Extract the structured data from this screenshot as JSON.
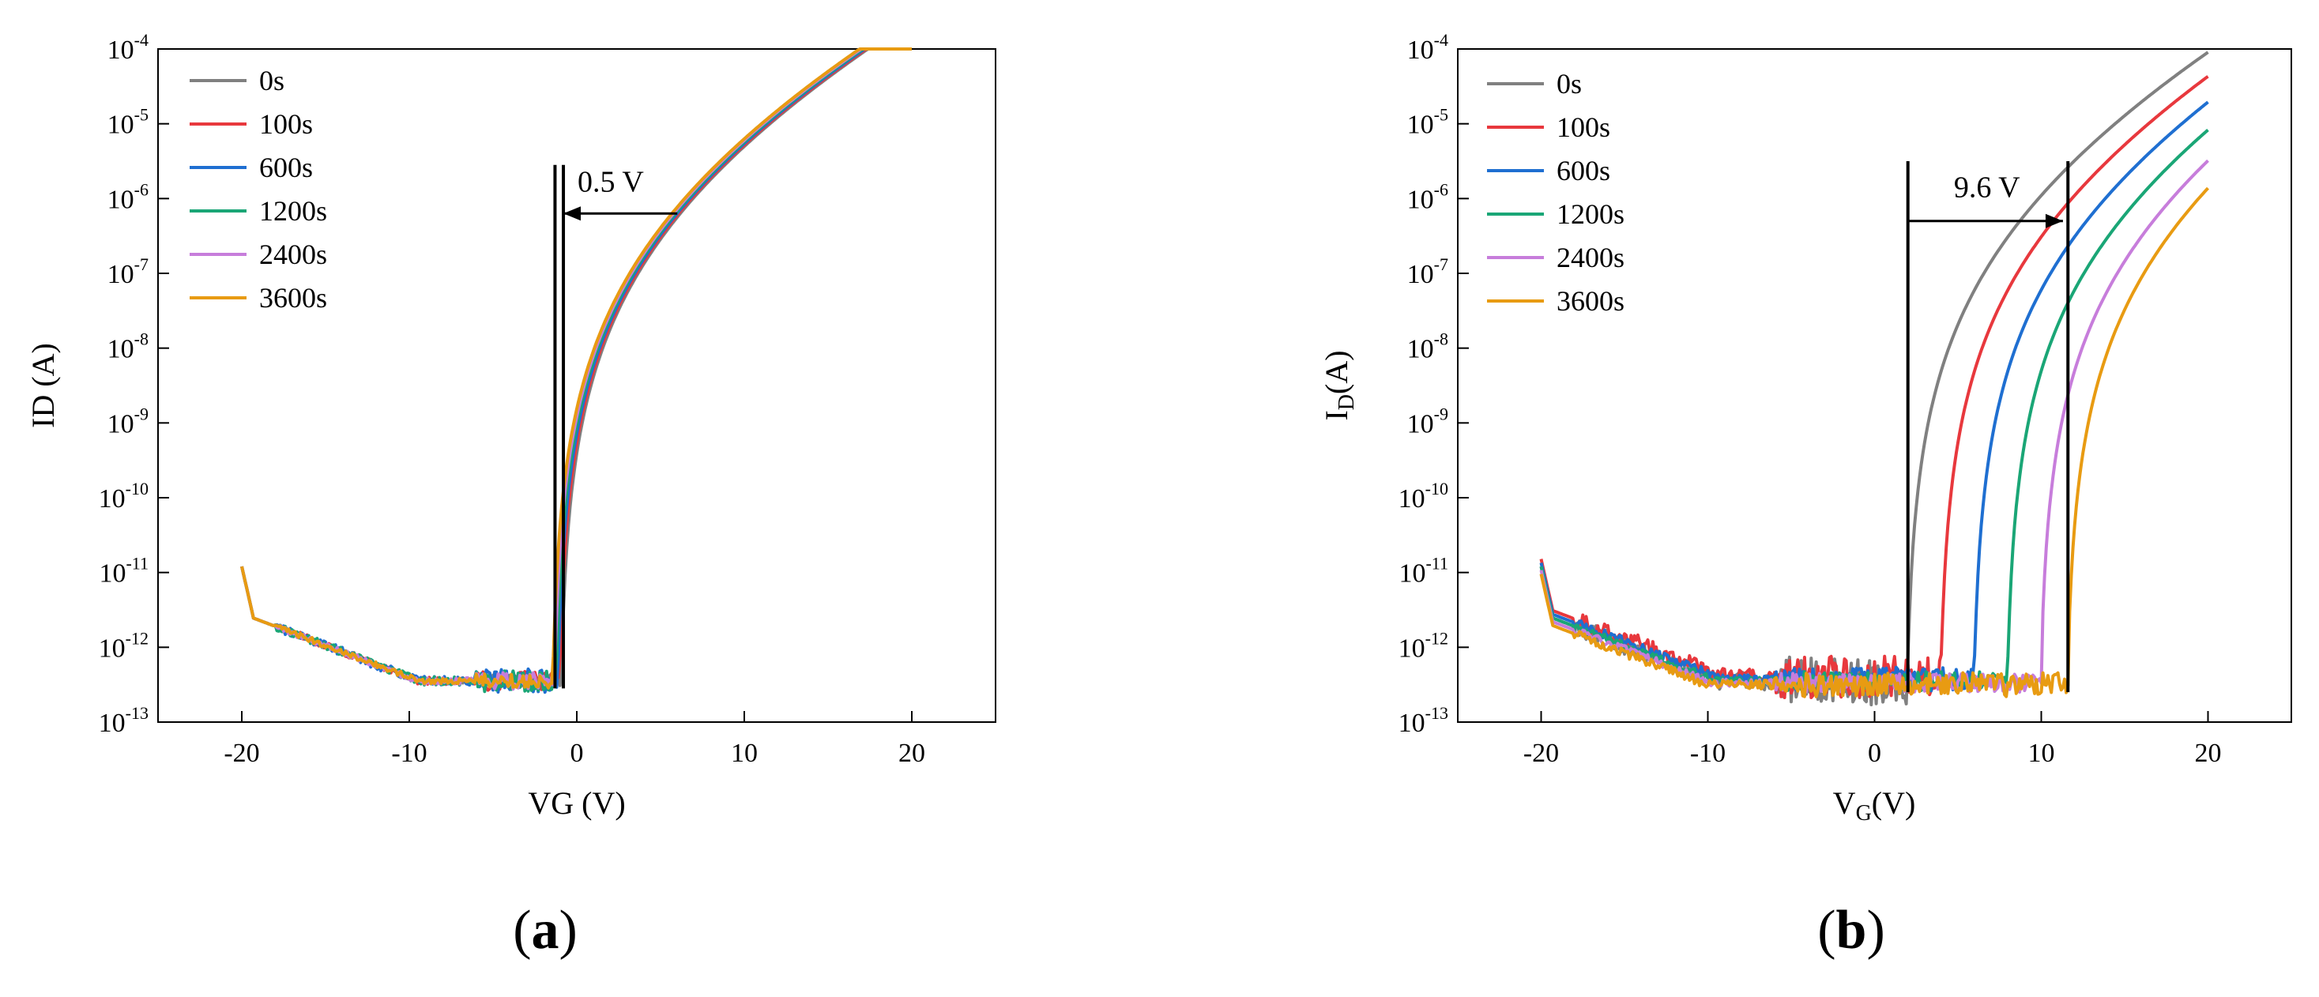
{
  "chart_data": [
    {
      "panel": "a",
      "panel_label": "a",
      "type": "line",
      "xlabel": "VG (V)",
      "ylabel": "ID (A)",
      "xlim": [
        -25,
        25
      ],
      "ylim_log10": [
        -13,
        -4
      ],
      "y_scale": "log",
      "x_ticks": [
        -20,
        -10,
        0,
        10,
        20
      ],
      "x_tick_labels": [
        "-20",
        "-10",
        "0",
        "10",
        "20"
      ],
      "y_ticks_exp": [
        -4,
        -5,
        -6,
        -7,
        -8,
        -9,
        -10,
        -11,
        -12,
        -13
      ],
      "y_tick_base": "10",
      "y_tick_exp_labels": [
        "-4",
        "-5",
        "-6",
        "-7",
        "-8",
        "-9",
        "-10",
        "-11",
        "-12",
        "-13"
      ],
      "legend_position": "top-left",
      "annotation": {
        "text": "0.5 V",
        "x_lines": [
          -1.3,
          -0.8
        ],
        "arrow_from_x": 6,
        "arrow_to_x": -0.8,
        "arrow_y_log": -6.2,
        "line_top_log": -5.55,
        "line_bottom_log": -12.55
      },
      "series": [
        {
          "name": "0s",
          "color": "#808080",
          "vth": -0.9,
          "noise": 0.05,
          "off_scale": 0
        },
        {
          "name": "100s",
          "color": "#e8383d",
          "vth": -1.0,
          "noise": 0.08,
          "off_scale": 0
        },
        {
          "name": "600s",
          "color": "#1f6fd1",
          "vth": -1.1,
          "noise": 0.1,
          "off_scale": 0
        },
        {
          "name": "1200s",
          "color": "#1aa676",
          "vth": -1.2,
          "noise": 0.09,
          "off_scale": 0
        },
        {
          "name": "2400s",
          "color": "#c77ddb",
          "vth": -1.3,
          "noise": 0.07,
          "off_scale": 0
        },
        {
          "name": "3600s",
          "color": "#e89b12",
          "vth": -1.4,
          "noise": 0.06,
          "off_scale": 0
        }
      ]
    },
    {
      "panel": "b",
      "panel_label": "b",
      "type": "line",
      "xlabel": "V",
      "xlabel_sub": "G",
      "xlabel_unit": "(V)",
      "ylabel": "I",
      "ylabel_sub": "D",
      "ylabel_unit": "(A)",
      "xlim": [
        -25,
        25
      ],
      "ylim_log10": [
        -13,
        -4
      ],
      "y_scale": "log",
      "x_ticks": [
        -20,
        -10,
        0,
        10,
        20
      ],
      "x_tick_labels": [
        "-20",
        "-10",
        "0",
        "10",
        "20"
      ],
      "y_ticks_exp": [
        -4,
        -5,
        -6,
        -7,
        -8,
        -9,
        -10,
        -11,
        -12,
        -13
      ],
      "y_tick_base": "10",
      "y_tick_exp_labels": [
        "-4",
        "-5",
        "-6",
        "-7",
        "-8",
        "-9",
        "-10",
        "-11",
        "-12",
        "-13"
      ],
      "legend_position": "top-left",
      "annotation": {
        "text": "9.6 V",
        "x_lines": [
          2.0,
          11.6
        ],
        "arrow_from_x": 2.0,
        "arrow_to_x": 11.3,
        "arrow_y_log": -6.3,
        "line_top_log": -5.5,
        "line_bottom_log": -12.6
      },
      "series": [
        {
          "name": "0s",
          "color": "#808080",
          "vth": 2.0,
          "noise": 0.2,
          "off_scale": 0.0
        },
        {
          "name": "100s",
          "color": "#e8383d",
          "vth": 4.0,
          "noise": 0.18,
          "off_scale": 0.1
        },
        {
          "name": "600s",
          "color": "#1f6fd1",
          "vth": 6.0,
          "noise": 0.1,
          "off_scale": 0.05
        },
        {
          "name": "1200s",
          "color": "#1aa676",
          "vth": 8.0,
          "noise": 0.08,
          "off_scale": 0.0
        },
        {
          "name": "2400s",
          "color": "#c77ddb",
          "vth": 10.0,
          "noise": 0.08,
          "off_scale": -0.05
        },
        {
          "name": "3600s",
          "color": "#e89b12",
          "vth": 11.6,
          "noise": 0.1,
          "off_scale": -0.1
        }
      ]
    }
  ]
}
